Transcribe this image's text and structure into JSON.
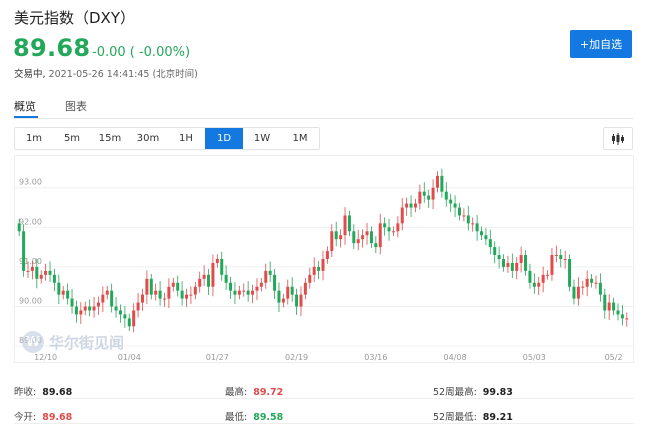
{
  "header": {
    "title": "美元指数（DXY）",
    "price": "89.68",
    "change": "-0.00 ( -0.00%)",
    "status_label": "交易中,",
    "timestamp": "2021-05-26 14:41:45 (北京时间)",
    "add_button": "+加自选"
  },
  "tabs": [
    {
      "label": "概览",
      "active": true
    },
    {
      "label": "图表",
      "active": false
    }
  ],
  "periods": [
    {
      "label": "1m",
      "active": false
    },
    {
      "label": "5m",
      "active": false
    },
    {
      "label": "15m",
      "active": false
    },
    {
      "label": "30m",
      "active": false
    },
    {
      "label": "1H",
      "active": false
    },
    {
      "label": "1D",
      "active": true
    },
    {
      "label": "1W",
      "active": false
    },
    {
      "label": "1M",
      "active": false
    }
  ],
  "chart_type_icon": "candlestick-icon",
  "watermark": {
    "logo": "W",
    "text": "华尔街见闻"
  },
  "chart_data": {
    "type": "candlestick",
    "y_ticks": [
      "93.00",
      "92.00",
      "91.00",
      "90.00",
      "89.00"
    ],
    "y_tick_values": [
      93,
      92,
      91,
      90,
      89
    ],
    "ylim": [
      88.75,
      93.65
    ],
    "x_ticks": [
      "12/10",
      "01/04",
      "01/27",
      "02/19",
      "03/16",
      "04/08",
      "05/03",
      "05/2"
    ],
    "x_tick_index": [
      6,
      25,
      45,
      63,
      81,
      99,
      117,
      135
    ],
    "grid": true,
    "up_color": "#e04b4b",
    "down_color": "#23a75a",
    "closes": [
      91.9,
      90.9,
      90.9,
      91.0,
      90.7,
      90.8,
      90.9,
      90.8,
      90.6,
      90.3,
      90.4,
      90.2,
      90.0,
      89.8,
      89.9,
      90.0,
      89.9,
      90.0,
      90.1,
      90.3,
      90.4,
      90.0,
      89.9,
      89.8,
      89.7,
      89.5,
      89.9,
      90.1,
      90.3,
      90.7,
      90.3,
      90.4,
      90.2,
      90.2,
      90.5,
      90.6,
      90.4,
      90.2,
      90.3,
      90.3,
      90.5,
      90.7,
      90.8,
      90.5,
      91.1,
      91.2,
      90.8,
      90.6,
      90.4,
      90.3,
      90.4,
      90.4,
      90.3,
      90.4,
      90.5,
      90.6,
      90.9,
      90.8,
      90.4,
      90.1,
      90.2,
      90.5,
      90.3,
      90.0,
      90.3,
      90.6,
      90.8,
      91.0,
      90.9,
      91.2,
      91.4,
      91.9,
      91.7,
      91.8,
      92.3,
      91.9,
      91.6,
      91.7,
      91.8,
      91.9,
      91.6,
      91.5,
      92.1,
      92.0,
      91.9,
      91.9,
      92.1,
      92.5,
      92.6,
      92.5,
      92.6,
      92.9,
      92.8,
      92.7,
      93.0,
      93.3,
      92.9,
      92.7,
      92.6,
      92.5,
      92.3,
      92.3,
      92.1,
      92.1,
      91.9,
      91.8,
      91.7,
      91.5,
      91.3,
      91.2,
      91.0,
      91.1,
      90.9,
      91.1,
      91.3,
      90.9,
      90.6,
      90.5,
      90.6,
      90.8,
      90.8,
      91.3,
      91.3,
      91.2,
      91.2,
      90.5,
      90.2,
      90.5,
      90.5,
      90.7,
      90.6,
      90.6,
      90.3,
      89.9,
      90.1,
      89.9,
      89.8,
      89.7,
      89.7
    ]
  },
  "stats": {
    "prev_close_label": "昨收:",
    "prev_close": "89.68",
    "high_label": "最高:",
    "high": "89.72",
    "w52_high_label": "52周最高:",
    "w52_high": "99.83",
    "open_label": "今开:",
    "open": "89.68",
    "low_label": "最低:",
    "low": "89.58",
    "w52_low_label": "52周最低:",
    "w52_low": "89.21"
  }
}
